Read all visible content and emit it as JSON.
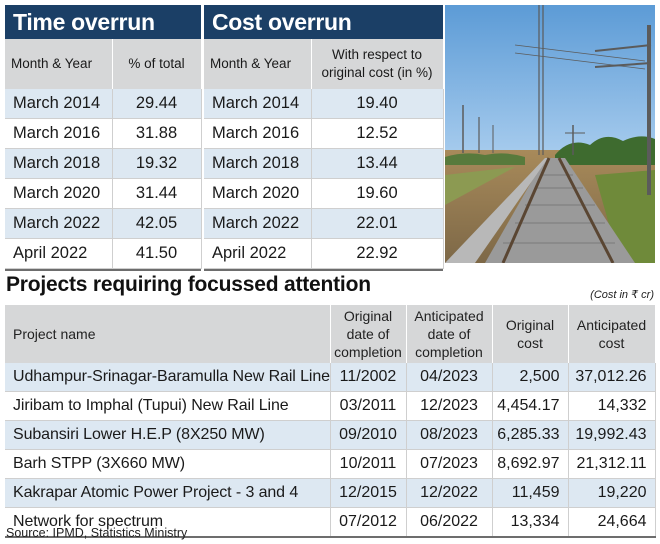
{
  "time_overrun": {
    "title": "Time overrun",
    "col_month": "Month & Year",
    "col_value": "% of total",
    "rows": [
      {
        "month": "March 2014",
        "value": "29.44"
      },
      {
        "month": "March 2016",
        "value": "31.88"
      },
      {
        "month": "March 2018",
        "value": "19.32"
      },
      {
        "month": "March 2020",
        "value": "31.44"
      },
      {
        "month": "March 2022",
        "value": "42.05"
      },
      {
        "month": "April 2022",
        "value": "41.50"
      }
    ]
  },
  "cost_overrun": {
    "title": "Cost overrun",
    "col_month": "Month & Year",
    "col_value_1": "With respect to",
    "col_value_2": "original cost (in %)",
    "rows": [
      {
        "month": "March 2014",
        "value": "19.40"
      },
      {
        "month": "March 2016",
        "value": "12.52"
      },
      {
        "month": "March 2018",
        "value": "13.44"
      },
      {
        "month": "March 2020",
        "value": "19.60"
      },
      {
        "month": "March 2022",
        "value": "22.01"
      },
      {
        "month": "April 2022",
        "value": "22.92"
      }
    ]
  },
  "projects": {
    "title": "Projects requiring focussed attention",
    "unit": "(Cost in ₹ cr)",
    "headers": {
      "name": "Project name",
      "orig_date": [
        "Original",
        "date of",
        "completion"
      ],
      "ant_date": [
        "Anticipated",
        "date of",
        "completion"
      ],
      "orig_cost": [
        "Original",
        "cost"
      ],
      "ant_cost": [
        "Anticipated",
        "cost"
      ]
    },
    "rows": [
      {
        "name": "Udhampur-Srinagar-Baramulla New Rail Line",
        "orig_date": "11/2002",
        "ant_date": "04/2023",
        "orig_cost": "2,500",
        "ant_cost": "37,012.26"
      },
      {
        "name": "Jiribam to Imphal (Tupui) New Rail Line",
        "orig_date": "03/2011",
        "ant_date": "12/2023",
        "orig_cost": "4,454.17",
        "ant_cost": "14,332"
      },
      {
        "name": "Subansiri Lower H.E.P (8X250 MW)",
        "orig_date": "09/2010",
        "ant_date": "08/2023",
        "orig_cost": "6,285.33",
        "ant_cost": "19,992.43"
      },
      {
        "name": "Barh STPP (3X660 MW)",
        "orig_date": "10/2011",
        "ant_date": "07/2023",
        "orig_cost": "8,692.97",
        "ant_cost": "21,312.11"
      },
      {
        "name": "Kakrapar Atomic Power Project - 3 and 4",
        "orig_date": "12/2015",
        "ant_date": "12/2022",
        "orig_cost": "11,459",
        "ant_cost": "19,220"
      },
      {
        "name": "Network for spectrum",
        "orig_date": "07/2012",
        "ant_date": "06/2022",
        "orig_cost": "13,334",
        "ant_cost": "24,664"
      }
    ]
  },
  "source": "Source: IPMD, Statistics Ministry",
  "chart_data": {
    "type": "table",
    "tables": [
      {
        "title": "Time overrun",
        "columns": [
          "Month & Year",
          "% of total"
        ],
        "rows": [
          [
            "March 2014",
            29.44
          ],
          [
            "March 2016",
            31.88
          ],
          [
            "March 2018",
            19.32
          ],
          [
            "March 2020",
            31.44
          ],
          [
            "March 2022",
            42.05
          ],
          [
            "April 2022",
            41.5
          ]
        ]
      },
      {
        "title": "Cost overrun",
        "columns": [
          "Month & Year",
          "With respect to original cost (in %)"
        ],
        "rows": [
          [
            "March 2014",
            19.4
          ],
          [
            "March 2016",
            12.52
          ],
          [
            "March 2018",
            13.44
          ],
          [
            "March 2020",
            19.6
          ],
          [
            "March 2022",
            22.01
          ],
          [
            "April 2022",
            22.92
          ]
        ]
      },
      {
        "title": "Projects requiring focussed attention",
        "columns": [
          "Project name",
          "Original date of completion",
          "Anticipated date of completion",
          "Original cost",
          "Anticipated cost"
        ],
        "rows": [
          [
            "Udhampur-Srinagar-Baramulla New Rail Line",
            "11/2002",
            "04/2023",
            2500,
            37012.26
          ],
          [
            "Jiribam to Imphal (Tupui) New Rail Line",
            "03/2011",
            "12/2023",
            4454.17,
            14332
          ],
          [
            "Subansiri Lower H.E.P (8X250 MW)",
            "09/2010",
            "08/2023",
            6285.33,
            19992.43
          ],
          [
            "Barh STPP (3X660 MW)",
            "10/2011",
            "07/2023",
            8692.97,
            21312.11
          ],
          [
            "Kakrapar Atomic Power Project - 3 and 4",
            "12/2015",
            "12/2022",
            11459,
            19220
          ],
          [
            "Network for spectrum",
            "07/2012",
            "06/2022",
            13334,
            24664
          ]
        ]
      }
    ]
  },
  "colors": {
    "header_blue": "#1b3f66",
    "subheader_grey": "#d6d7d8",
    "row_tint": "#dde8f2"
  }
}
